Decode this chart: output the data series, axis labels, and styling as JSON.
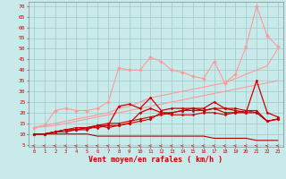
{
  "background_color": "#c8eaea",
  "grid_color": "#a0c8c8",
  "xlabel": "Vent moyen/en rafales ( km/h )",
  "ylabel_ticks": [
    5,
    10,
    15,
    20,
    25,
    30,
    35,
    40,
    45,
    50,
    55,
    60,
    65,
    70
  ],
  "xlim": [
    -0.5,
    23.5
  ],
  "ylim": [
    4,
    72
  ],
  "x": [
    0,
    1,
    2,
    3,
    4,
    5,
    6,
    7,
    8,
    9,
    10,
    11,
    12,
    13,
    14,
    15,
    16,
    17,
    18,
    19,
    20,
    21,
    22,
    23
  ],
  "lines": [
    {
      "color": "#ff9999",
      "lw": 0.8,
      "marker": "D",
      "markersize": 2,
      "y": [
        13,
        14,
        21,
        22,
        21,
        21,
        22,
        25,
        41,
        40,
        40,
        46,
        44,
        40,
        39,
        37,
        36,
        44,
        34,
        38,
        51,
        70,
        56,
        51
      ]
    },
    {
      "color": "#ff9999",
      "lw": 0.8,
      "marker": null,
      "markersize": 0,
      "y": [
        13,
        14,
        15,
        16,
        17,
        18,
        19,
        20,
        22,
        23,
        25,
        27,
        28,
        29,
        30,
        31,
        32,
        33,
        34,
        36,
        38,
        40,
        42,
        50
      ]
    },
    {
      "color": "#ff9999",
      "lw": 0.8,
      "marker": null,
      "markersize": 0,
      "y": [
        13,
        13.5,
        14,
        15,
        16,
        17,
        18,
        19,
        20,
        21,
        22,
        23,
        24,
        25,
        26,
        27,
        28,
        29,
        30,
        31,
        32,
        33,
        34,
        35
      ]
    },
    {
      "color": "#cc0000",
      "lw": 0.9,
      "marker": "D",
      "markersize": 1.5,
      "y": [
        10,
        10,
        11,
        11,
        12,
        12,
        14,
        14,
        23,
        24,
        22,
        27,
        21,
        22,
        22,
        22,
        22,
        25,
        22,
        21,
        20,
        35,
        20,
        18
      ]
    },
    {
      "color": "#cc0000",
      "lw": 0.9,
      "marker": "D",
      "markersize": 1.5,
      "y": [
        10,
        10,
        11,
        12,
        12,
        13,
        13,
        14,
        14,
        15,
        20,
        22,
        20,
        20,
        21,
        22,
        21,
        22,
        20,
        20,
        20,
        20,
        16,
        17
      ]
    },
    {
      "color": "#cc0000",
      "lw": 0.8,
      "marker": "D",
      "markersize": 1.5,
      "y": [
        10,
        10,
        11,
        12,
        12,
        13,
        14,
        15,
        15,
        16,
        17,
        18,
        19,
        20,
        21,
        21,
        21,
        22,
        22,
        22,
        21,
        21,
        16,
        17
      ]
    },
    {
      "color": "#cc0000",
      "lw": 0.8,
      "marker": "D",
      "markersize": 1.5,
      "y": [
        10,
        10,
        11,
        12,
        13,
        13,
        14,
        13,
        14,
        15,
        16,
        17,
        20,
        19,
        19,
        19,
        20,
        20,
        19,
        20,
        21,
        20,
        16,
        17
      ]
    },
    {
      "color": "#aa0000",
      "lw": 0.8,
      "marker": null,
      "markersize": 0,
      "y": [
        10,
        10,
        10,
        10,
        10,
        10,
        9,
        9,
        9,
        9,
        9,
        9,
        9,
        9,
        9,
        9,
        9,
        8,
        8,
        8,
        8,
        7,
        7,
        7
      ]
    }
  ],
  "arrow_color": "#cc3333"
}
